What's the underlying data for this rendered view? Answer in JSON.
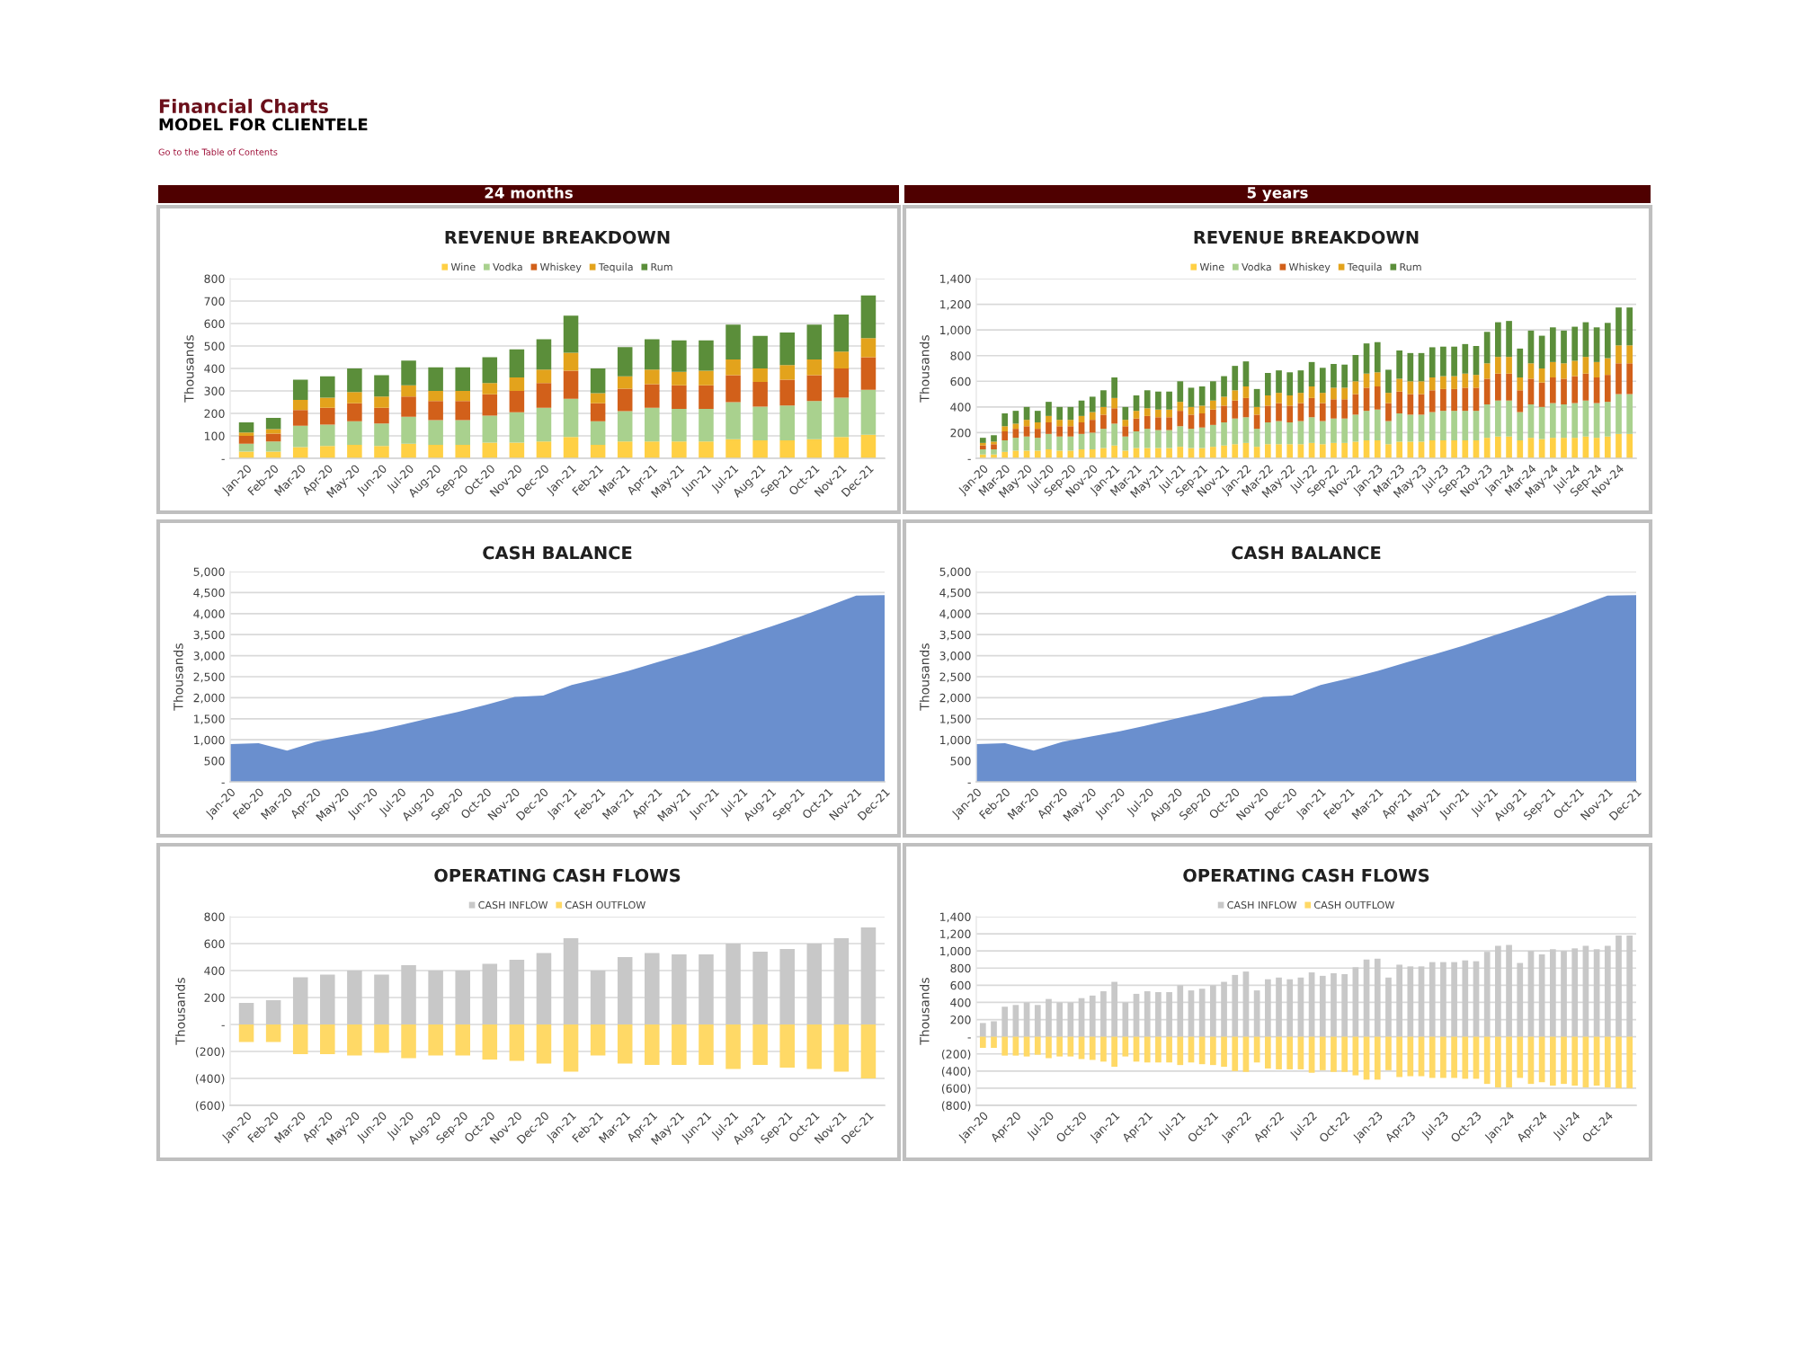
{
  "chart_data": [
    {
      "type": "bar",
      "title": "REVENUE BREAKDOWN",
      "ylabel": "Thousands",
      "stacked": true,
      "legend": "top",
      "grid": "y",
      "annotations": [
        "Financial Charts",
        "MODEL FOR CLIENTELE",
        "Go to the Table of Contents",
        "24 months"
      ],
      "categories": [
        "Jan-20",
        "Feb-20",
        "Mar-20",
        "Apr-20",
        "May-20",
        "Jun-20",
        "Jul-20",
        "Aug-20",
        "Sep-20",
        "Oct-20",
        "Nov-20",
        "Dec-20",
        "Jan-21",
        "Feb-21",
        "Mar-21",
        "Apr-21",
        "May-21",
        "Jun-21",
        "Jul-21",
        "Aug-21",
        "Sep-21",
        "Oct-21",
        "Nov-21",
        "Dec-21"
      ],
      "ylim": [
        0,
        800
      ],
      "yticks": [
        {
          "value": 0,
          "label": "-"
        },
        100,
        200,
        300,
        400,
        500,
        600,
        700,
        800
      ],
      "series": [
        {
          "name": "Wine",
          "color": "#ffd044",
          "values": [
            30,
            30,
            50,
            55,
            60,
            55,
            65,
            60,
            60,
            70,
            70,
            75,
            95,
            60,
            75,
            75,
            75,
            75,
            85,
            80,
            80,
            85,
            95,
            105
          ]
        },
        {
          "name": "Vodka",
          "color": "#a9d18e",
          "values": [
            35,
            45,
            95,
            95,
            105,
            100,
            120,
            110,
            110,
            120,
            135,
            150,
            170,
            105,
            135,
            150,
            145,
            145,
            165,
            150,
            155,
            170,
            175,
            200
          ]
        },
        {
          "name": "Whiskey",
          "color": "#d2601a",
          "values": [
            35,
            35,
            70,
            75,
            80,
            70,
            90,
            85,
            85,
            95,
            95,
            110,
            125,
            80,
            100,
            105,
            105,
            105,
            120,
            110,
            115,
            115,
            130,
            145
          ]
        },
        {
          "name": "Tequila",
          "color": "#e3a31c",
          "values": [
            15,
            20,
            45,
            45,
            50,
            50,
            50,
            45,
            45,
            50,
            60,
            60,
            80,
            45,
            55,
            65,
            60,
            65,
            70,
            60,
            65,
            70,
            75,
            85
          ]
        },
        {
          "name": "Rum",
          "color": "#5b8e3a",
          "values": [
            45,
            50,
            90,
            95,
            105,
            95,
            110,
            105,
            105,
            115,
            125,
            135,
            165,
            110,
            130,
            135,
            140,
            135,
            155,
            145,
            145,
            155,
            165,
            190
          ]
        }
      ]
    },
    {
      "type": "bar",
      "title": "REVENUE BREAKDOWN",
      "ylabel": "Thousands",
      "stacked": true,
      "legend": "top",
      "grid": "y",
      "annotations": [
        "5 years"
      ],
      "categories": [
        "Jan-20",
        null,
        "Mar-20",
        null,
        "May-20",
        null,
        "Jul-20",
        null,
        "Sep-20",
        null,
        "Nov-20",
        null,
        "Jan-21",
        null,
        "Mar-21",
        null,
        "May-21",
        null,
        "Jul-21",
        null,
        "Sep-21",
        null,
        "Nov-21",
        null,
        "Jan-22",
        null,
        "Mar-22",
        null,
        "May-22",
        null,
        "Jul-22",
        null,
        "Sep-22",
        null,
        "Nov-22",
        null,
        "Jan-23",
        null,
        "Mar-23",
        null,
        "May-23",
        null,
        "Jul-23",
        null,
        "Sep-23",
        null,
        "Nov-23",
        null,
        "Jan-24",
        null,
        "Mar-24",
        null,
        "May-24",
        null,
        "Jul-24",
        null,
        "Sep-24",
        null,
        "Nov-24",
        null
      ],
      "ylim": [
        0,
        1400
      ],
      "yticks": [
        {
          "value": 0,
          "label": "-"
        },
        200,
        400,
        600,
        800,
        {
          "value": 1000,
          "label": "1,000"
        },
        {
          "value": 1200,
          "label": "1,200"
        },
        {
          "value": 1400,
          "label": "1,400"
        }
      ],
      "series": [
        {
          "name": "Wine",
          "color": "#ffd044",
          "values": [
            30,
            30,
            50,
            60,
            60,
            60,
            70,
            60,
            60,
            70,
            70,
            80,
            100,
            60,
            80,
            80,
            80,
            80,
            90,
            80,
            80,
            90,
            100,
            110,
            120,
            90,
            110,
            110,
            110,
            110,
            120,
            110,
            120,
            120,
            130,
            140,
            140,
            110,
            130,
            130,
            130,
            140,
            140,
            140,
            140,
            140,
            160,
            170,
            170,
            140,
            160,
            150,
            160,
            160,
            160,
            170,
            160,
            170,
            190,
            190
          ]
        },
        {
          "name": "Vodka",
          "color": "#a9d18e",
          "values": [
            40,
            40,
            90,
            100,
            110,
            100,
            120,
            110,
            110,
            120,
            130,
            150,
            170,
            110,
            130,
            150,
            140,
            140,
            160,
            150,
            160,
            170,
            180,
            200,
            200,
            140,
            170,
            180,
            170,
            180,
            200,
            180,
            190,
            190,
            210,
            230,
            240,
            180,
            220,
            210,
            210,
            220,
            230,
            230,
            230,
            230,
            260,
            280,
            280,
            220,
            260,
            250,
            270,
            260,
            270,
            280,
            270,
            270,
            310,
            310
          ]
        },
        {
          "name": "Whiskey",
          "color": "#d2601a",
          "values": [
            30,
            40,
            70,
            70,
            80,
            70,
            90,
            80,
            80,
            90,
            100,
            110,
            120,
            80,
            100,
            100,
            100,
            100,
            120,
            110,
            110,
            120,
            130,
            140,
            150,
            110,
            130,
            140,
            130,
            140,
            150,
            140,
            150,
            150,
            160,
            180,
            180,
            140,
            170,
            160,
            160,
            170,
            170,
            170,
            180,
            180,
            200,
            210,
            210,
            170,
            200,
            190,
            200,
            200,
            210,
            210,
            200,
            210,
            240,
            240
          ]
        },
        {
          "name": "Tequila",
          "color": "#e3a31c",
          "values": [
            20,
            20,
            40,
            40,
            50,
            50,
            50,
            50,
            50,
            50,
            60,
            60,
            80,
            50,
            60,
            60,
            60,
            60,
            70,
            60,
            60,
            70,
            70,
            80,
            90,
            60,
            80,
            80,
            80,
            80,
            90,
            80,
            90,
            90,
            100,
            110,
            110,
            80,
            100,
            100,
            100,
            100,
            100,
            100,
            110,
            100,
            120,
            130,
            130,
            100,
            120,
            110,
            120,
            120,
            120,
            130,
            120,
            130,
            140,
            140
          ]
        },
        {
          "name": "Rum",
          "color": "#5b8e3a",
          "values": [
            40,
            50,
            100,
            100,
            100,
            90,
            110,
            100,
            100,
            120,
            120,
            130,
            160,
            100,
            120,
            140,
            140,
            140,
            160,
            150,
            150,
            150,
            160,
            190,
            195,
            140,
            175,
            175,
            180,
            175,
            190,
            195,
            185,
            180,
            205,
            235,
            235,
            180,
            220,
            220,
            220,
            235,
            230,
            230,
            230,
            225,
            245,
            270,
            280,
            225,
            255,
            255,
            270,
            255,
            265,
            270,
            270,
            275,
            295,
            295
          ]
        }
      ]
    },
    {
      "type": "area",
      "title": "CASH BALANCE",
      "ylabel": "Thousands",
      "grid": "y",
      "categories": [
        "Jan-20",
        "Feb-20",
        "Mar-20",
        "Apr-20",
        "May-20",
        "Jun-20",
        "Jul-20",
        "Aug-20",
        "Sep-20",
        "Oct-20",
        "Nov-20",
        "Dec-20",
        "Jan-21",
        "Feb-21",
        "Mar-21",
        "Apr-21",
        "May-21",
        "Jun-21",
        "Jul-21",
        "Aug-21",
        "Sep-21",
        "Oct-21",
        "Nov-21",
        "Dec-21"
      ],
      "ylim": [
        0,
        5000
      ],
      "yticks": [
        {
          "value": 0,
          "label": "-"
        },
        500,
        {
          "value": 1000,
          "label": "1,000"
        },
        {
          "value": 1500,
          "label": "1,500"
        },
        {
          "value": 2000,
          "label": "2,000"
        },
        {
          "value": 2500,
          "label": "2,500"
        },
        {
          "value": 3000,
          "label": "3,000"
        },
        {
          "value": 3500,
          "label": "3,500"
        },
        {
          "value": 4000,
          "label": "4,000"
        },
        {
          "value": 4500,
          "label": "4,500"
        },
        {
          "value": 5000,
          "label": "5,000"
        }
      ],
      "series": [
        {
          "color": "#6a8fce",
          "values": [
            900,
            920,
            740,
            950,
            1080,
            1200,
            1350,
            1510,
            1660,
            1830,
            2020,
            2050,
            2300,
            2460,
            2640,
            2840,
            3040,
            3240,
            3470,
            3690,
            3920,
            4170,
            4430,
            4440
          ]
        }
      ]
    },
    {
      "type": "area",
      "title": "CASH BALANCE",
      "ylabel": "Thousands",
      "grid": "y",
      "categories": [
        "Jan-20",
        "Feb-20",
        "Mar-20",
        "Apr-20",
        "May-20",
        "Jun-20",
        "Jul-20",
        "Aug-20",
        "Sep-20",
        "Oct-20",
        "Nov-20",
        "Dec-20",
        "Jan-21",
        "Feb-21",
        "Mar-21",
        "Apr-21",
        "May-21",
        "Jun-21",
        "Jul-21",
        "Aug-21",
        "Sep-21",
        "Oct-21",
        "Nov-21",
        "Dec-21"
      ],
      "ylim": [
        0,
        5000
      ],
      "yticks": [
        {
          "value": 0,
          "label": "-"
        },
        500,
        {
          "value": 1000,
          "label": "1,000"
        },
        {
          "value": 1500,
          "label": "1,500"
        },
        {
          "value": 2000,
          "label": "2,000"
        },
        {
          "value": 2500,
          "label": "2,500"
        },
        {
          "value": 3000,
          "label": "3,000"
        },
        {
          "value": 3500,
          "label": "3,500"
        },
        {
          "value": 4000,
          "label": "4,000"
        },
        {
          "value": 4500,
          "label": "4,500"
        },
        {
          "value": 5000,
          "label": "5,000"
        }
      ],
      "series": [
        {
          "color": "#6a8fce",
          "values": [
            900,
            920,
            740,
            950,
            1080,
            1200,
            1350,
            1510,
            1660,
            1830,
            2020,
            2050,
            2300,
            2460,
            2640,
            2840,
            3040,
            3240,
            3470,
            3690,
            3920,
            4170,
            4430,
            4440
          ]
        }
      ]
    },
    {
      "type": "bar",
      "title": "OPERATING CASH FLOWS",
      "ylabel": "Thousands",
      "stacked": true,
      "legend": "top",
      "grid": "y",
      "categories": [
        "Jan-20",
        "Feb-20",
        "Mar-20",
        "Apr-20",
        "May-20",
        "Jun-20",
        "Jul-20",
        "Aug-20",
        "Sep-20",
        "Oct-20",
        "Nov-20",
        "Dec-20",
        "Jan-21",
        "Feb-21",
        "Mar-21",
        "Apr-21",
        "May-21",
        "Jun-21",
        "Jul-21",
        "Aug-21",
        "Sep-21",
        "Oct-21",
        "Nov-21",
        "Dec-21"
      ],
      "ylim": [
        -600,
        800
      ],
      "yticks": [
        {
          "value": -600,
          "label": "(600)"
        },
        {
          "value": -400,
          "label": "(400)"
        },
        {
          "value": -200,
          "label": "(200)"
        },
        {
          "value": 0,
          "label": "-"
        },
        200,
        400,
        600,
        800
      ],
      "series": [
        {
          "name": "CASH INFLOW",
          "color": "#c8c8c8",
          "values": [
            160,
            180,
            350,
            370,
            400,
            370,
            440,
            400,
            400,
            450,
            480,
            530,
            640,
            400,
            500,
            530,
            520,
            520,
            600,
            540,
            560,
            600,
            640,
            720
          ]
        },
        {
          "name": "CASH OUTFLOW",
          "color": "#ffd966",
          "values": [
            -130,
            -130,
            -220,
            -220,
            -230,
            -210,
            -250,
            -230,
            -230,
            -260,
            -270,
            -290,
            -350,
            -230,
            -290,
            -300,
            -300,
            -300,
            -330,
            -300,
            -320,
            -330,
            -350,
            -400
          ]
        }
      ]
    },
    {
      "type": "bar",
      "title": "OPERATING CASH FLOWS",
      "ylabel": "Thousands",
      "stacked": true,
      "legend": "top",
      "grid": "y",
      "categories": [
        "Jan-20",
        null,
        null,
        "Apr-20",
        null,
        null,
        "Jul-20",
        null,
        null,
        "Oct-20",
        null,
        null,
        "Jan-21",
        null,
        null,
        "Apr-21",
        null,
        null,
        "Jul-21",
        null,
        null,
        "Oct-21",
        null,
        null,
        "Jan-22",
        null,
        null,
        "Apr-22",
        null,
        null,
        "Jul-22",
        null,
        null,
        "Oct-22",
        null,
        null,
        "Jan-23",
        null,
        null,
        "Apr-23",
        null,
        null,
        "Jul-23",
        null,
        null,
        "Oct-23",
        null,
        null,
        "Jan-24",
        null,
        null,
        "Apr-24",
        null,
        null,
        "Jul-24",
        null,
        null,
        "Oct-24",
        null,
        null
      ],
      "ylim": [
        -800,
        1400
      ],
      "yticks": [
        {
          "value": -800,
          "label": "(800)"
        },
        {
          "value": -600,
          "label": "(600)"
        },
        {
          "value": -400,
          "label": "(400)"
        },
        {
          "value": -200,
          "label": "(200)"
        },
        {
          "value": 0,
          "label": "-"
        },
        200,
        400,
        600,
        800,
        {
          "value": 1000,
          "label": "1,000"
        },
        {
          "value": 1200,
          "label": "1,200"
        },
        {
          "value": 1400,
          "label": "1,400"
        }
      ],
      "series": [
        {
          "name": "CASH INFLOW",
          "color": "#c8c8c8",
          "values": [
            160,
            180,
            350,
            370,
            400,
            370,
            440,
            400,
            400,
            450,
            480,
            530,
            640,
            400,
            500,
            530,
            520,
            520,
            600,
            540,
            560,
            600,
            640,
            720,
            760,
            540,
            670,
            690,
            670,
            690,
            750,
            710,
            740,
            730,
            810,
            900,
            910,
            690,
            840,
            820,
            820,
            870,
            870,
            870,
            890,
            880,
            990,
            1060,
            1070,
            860,
            1000,
            960,
            1020,
            1000,
            1030,
            1060,
            1020,
            1060,
            1180,
            1180
          ]
        },
        {
          "name": "CASH OUTFLOW",
          "color": "#ffd966",
          "values": [
            -130,
            -130,
            -220,
            -220,
            -230,
            -210,
            -250,
            -230,
            -230,
            -260,
            -270,
            -290,
            -350,
            -230,
            -290,
            -300,
            -300,
            -300,
            -330,
            -300,
            -320,
            -330,
            -350,
            -400,
            -410,
            -300,
            -370,
            -380,
            -380,
            -380,
            -420,
            -390,
            -410,
            -410,
            -450,
            -500,
            -500,
            -390,
            -470,
            -460,
            -460,
            -480,
            -480,
            -480,
            -490,
            -490,
            -550,
            -590,
            -590,
            -480,
            -550,
            -530,
            -570,
            -550,
            -570,
            -590,
            -570,
            -590,
            -600,
            -600
          ]
        }
      ]
    }
  ]
}
